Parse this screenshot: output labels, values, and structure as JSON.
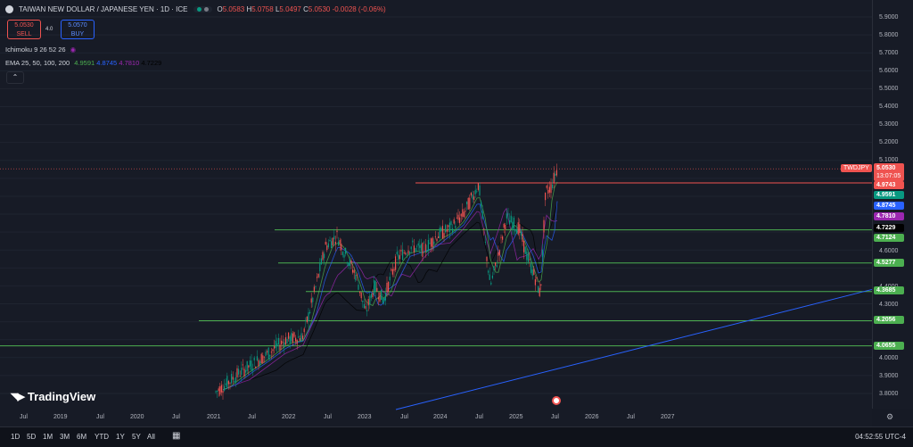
{
  "header": {
    "title": "TAIWAN NEW DOLLAR / JAPANESE YEN · 1D · ICE",
    "ohlc": {
      "o_label": "O",
      "o": "5.0583",
      "h_label": "H",
      "h": "5.0758",
      "l_label": "L",
      "l": "5.0497",
      "c_label": "C",
      "c": "5.0530",
      "change": "-0.0028 (-0.06%)"
    }
  },
  "trade": {
    "sell_price": "5.0530",
    "sell_label": "SELL",
    "spread": "4.0",
    "buy_price": "5.0570",
    "buy_label": "BUY"
  },
  "indicators": {
    "ichimoku": "Ichimoku 9 26 52 26",
    "ema_label": "EMA 25, 50, 100, 200",
    "ema_values": [
      "4.9591",
      "4.8745",
      "4.7810",
      "4.7229"
    ],
    "ema_colors": [
      "#4caf50",
      "#2962ff",
      "#9c27b0",
      "#000000"
    ]
  },
  "price_axis": [
    "5.9000",
    "5.8000",
    "5.7000",
    "5.6000",
    "5.5000",
    "5.4000",
    "5.3000",
    "5.2000",
    "5.1000",
    "4.6000",
    "4.4000",
    "4.3000",
    "4.0000",
    "3.9000",
    "3.8000"
  ],
  "tags": {
    "symbol": "TWDJPY",
    "last": "5.0530",
    "countdown": "13:07:05",
    "levels": [
      {
        "value": "4.9743",
        "color": "#ef5350"
      },
      {
        "value": "4.9591",
        "color": "#089981"
      },
      {
        "value": "4.8745",
        "color": "#2962ff"
      },
      {
        "value": "4.7810",
        "color": "#9c27b0"
      },
      {
        "value": "4.7229",
        "color": "#000000"
      },
      {
        "value": "4.7124",
        "color": "#4caf50"
      },
      {
        "value": "4.5277",
        "color": "#4caf50"
      },
      {
        "value": "4.3685",
        "color": "#4caf50"
      },
      {
        "value": "4.2056",
        "color": "#4caf50"
      },
      {
        "value": "4.0655",
        "color": "#4caf50"
      }
    ]
  },
  "time_axis": [
    "Jul",
    "2019",
    "Jul",
    "2020",
    "Jul",
    "2021",
    "Jul",
    "2022",
    "Jul",
    "2023",
    "Jul",
    "2024",
    "Jul",
    "2025",
    "Jul",
    "2026",
    "Jul",
    "2027"
  ],
  "ranges": [
    "1D",
    "5D",
    "1M",
    "3M",
    "6M",
    "YTD",
    "1Y",
    "5Y",
    "All"
  ],
  "clock": "04:52:55 UTC-4",
  "brand": "TradingView",
  "colors": {
    "bg": "#171b26",
    "support": "#4caf50",
    "resistance": "#ef5350",
    "trend": "#2962ff"
  }
}
